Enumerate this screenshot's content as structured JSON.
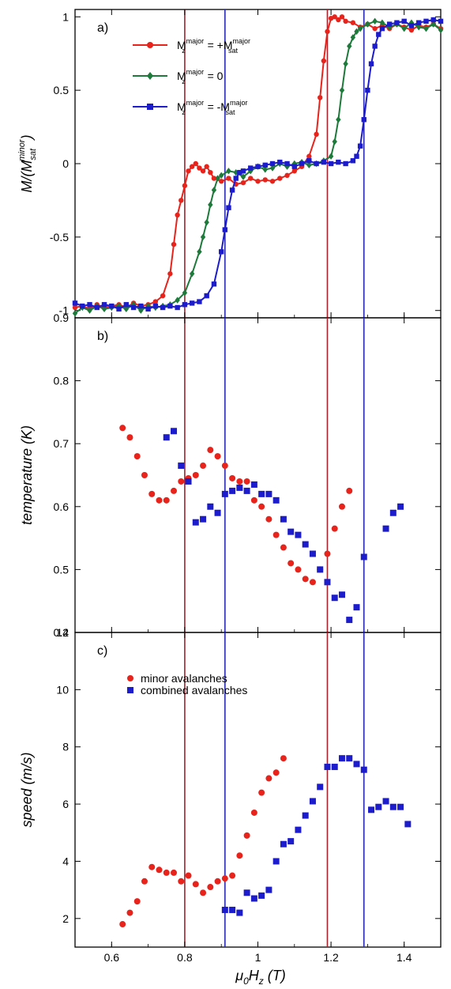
{
  "colors": {
    "red": "#e8231c",
    "green": "#1d7a3a",
    "blue": "#1c1ccc",
    "red_line": "#a8202a",
    "blue_line": "#2a2ab0"
  },
  "figure": {
    "xlabel": "μ0Hz (T)",
    "xlabel_main": "μ",
    "xlabel_sub1": "0",
    "xlabel_mid": "H",
    "xlabel_sub2": "z",
    "xlabel_unit": " (T)"
  },
  "chart_data": [
    {
      "type": "line",
      "panel_label": "a)",
      "ylabel": "M/(M_sat^minor)",
      "xlim": [
        0.5,
        1.5
      ],
      "ylim": [
        -1.05,
        1.05
      ],
      "xticks": [
        0.6,
        0.8,
        1.0,
        1.2,
        1.4
      ],
      "xtick_labels": [
        "0.6",
        "0.8",
        "1",
        "1.2",
        "1.4"
      ],
      "yticks": [
        -1,
        -0.5,
        0,
        0.5,
        1
      ],
      "ytick_labels": [
        "-1",
        "-0.5",
        "0",
        "0.5",
        "1"
      ],
      "legend": [
        {
          "label_pre": "M",
          "label_sup": "major",
          "label_sub": "z",
          "label_post": " = +M",
          "label_post_sup": "major",
          "label_post_sub": "sat",
          "color_key": "red",
          "marker": "circle"
        },
        {
          "label_pre": "M",
          "label_sup": "major",
          "label_sub": "z",
          "label_post": " = 0",
          "label_post_sup": "",
          "label_post_sub": "",
          "color_key": "green",
          "marker": "diamond"
        },
        {
          "label_pre": "M",
          "label_sup": "major",
          "label_sub": "z",
          "label_post": " = -M",
          "label_post_sup": "major",
          "label_post_sub": "sat",
          "color_key": "blue",
          "marker": "square"
        }
      ],
      "series": [
        {
          "color_key": "red",
          "marker": "circle",
          "x": [
            0.5,
            0.52,
            0.54,
            0.56,
            0.58,
            0.6,
            0.62,
            0.64,
            0.66,
            0.68,
            0.7,
            0.72,
            0.74,
            0.76,
            0.77,
            0.78,
            0.79,
            0.8,
            0.81,
            0.82,
            0.83,
            0.84,
            0.85,
            0.86,
            0.87,
            0.88,
            0.9,
            0.92,
            0.94,
            0.96,
            0.98,
            1.0,
            1.02,
            1.04,
            1.06,
            1.08,
            1.1,
            1.12,
            1.14,
            1.16,
            1.17,
            1.18,
            1.19,
            1.2,
            1.21,
            1.22,
            1.23,
            1.24,
            1.26,
            1.28,
            1.3,
            1.32,
            1.34,
            1.36,
            1.38,
            1.4,
            1.42,
            1.44,
            1.46,
            1.48,
            1.5
          ],
          "y": [
            -0.98,
            -0.97,
            -0.99,
            -0.96,
            -0.98,
            -0.97,
            -0.96,
            -0.98,
            -0.95,
            -0.97,
            -0.96,
            -0.94,
            -0.9,
            -0.75,
            -0.55,
            -0.35,
            -0.25,
            -0.15,
            -0.05,
            -0.02,
            0.0,
            -0.03,
            -0.05,
            -0.02,
            -0.06,
            -0.1,
            -0.12,
            -0.1,
            -0.14,
            -0.13,
            -0.1,
            -0.12,
            -0.11,
            -0.12,
            -0.1,
            -0.08,
            -0.05,
            -0.02,
            0.05,
            0.2,
            0.45,
            0.7,
            0.9,
            0.99,
            1.0,
            0.98,
            1.0,
            0.97,
            0.96,
            0.93,
            0.95,
            0.92,
            0.94,
            0.92,
            0.95,
            0.93,
            0.91,
            0.94,
            0.93,
            0.95,
            0.92
          ]
        },
        {
          "color_key": "green",
          "marker": "diamond",
          "x": [
            0.5,
            0.52,
            0.54,
            0.56,
            0.58,
            0.6,
            0.62,
            0.64,
            0.66,
            0.68,
            0.7,
            0.72,
            0.74,
            0.76,
            0.78,
            0.8,
            0.82,
            0.84,
            0.85,
            0.86,
            0.87,
            0.88,
            0.89,
            0.9,
            0.92,
            0.94,
            0.96,
            0.98,
            1.0,
            1.02,
            1.04,
            1.06,
            1.08,
            1.1,
            1.12,
            1.14,
            1.16,
            1.18,
            1.2,
            1.21,
            1.22,
            1.23,
            1.24,
            1.25,
            1.26,
            1.27,
            1.28,
            1.3,
            1.32,
            1.34,
            1.36,
            1.38,
            1.4,
            1.42,
            1.44,
            1.46,
            1.48,
            1.5
          ],
          "y": [
            -1.02,
            -0.98,
            -1.0,
            -0.97,
            -0.99,
            -0.98,
            -0.97,
            -0.99,
            -0.96,
            -1.0,
            -0.97,
            -0.98,
            -0.97,
            -0.96,
            -0.93,
            -0.88,
            -0.75,
            -0.6,
            -0.5,
            -0.4,
            -0.28,
            -0.18,
            -0.1,
            -0.08,
            -0.05,
            -0.06,
            -0.09,
            -0.05,
            -0.02,
            -0.04,
            -0.03,
            0.0,
            -0.02,
            0.0,
            0.01,
            -0.01,
            0.0,
            0.02,
            0.05,
            0.15,
            0.3,
            0.5,
            0.68,
            0.8,
            0.86,
            0.9,
            0.92,
            0.95,
            0.97,
            0.96,
            0.93,
            0.95,
            0.92,
            0.96,
            0.93,
            0.92,
            0.95,
            0.91
          ]
        },
        {
          "color_key": "blue",
          "marker": "square",
          "x": [
            0.5,
            0.52,
            0.54,
            0.56,
            0.58,
            0.6,
            0.62,
            0.64,
            0.66,
            0.68,
            0.7,
            0.72,
            0.74,
            0.76,
            0.78,
            0.8,
            0.82,
            0.84,
            0.86,
            0.88,
            0.9,
            0.91,
            0.92,
            0.93,
            0.94,
            0.95,
            0.96,
            0.98,
            1.0,
            1.02,
            1.04,
            1.06,
            1.08,
            1.1,
            1.12,
            1.14,
            1.16,
            1.18,
            1.2,
            1.22,
            1.24,
            1.26,
            1.27,
            1.28,
            1.29,
            1.3,
            1.31,
            1.32,
            1.33,
            1.34,
            1.36,
            1.38,
            1.4,
            1.42,
            1.44,
            1.46,
            1.48,
            1.5
          ],
          "y": [
            -0.95,
            -0.97,
            -0.96,
            -0.98,
            -0.96,
            -0.97,
            -0.99,
            -0.96,
            -0.98,
            -0.97,
            -0.99,
            -0.97,
            -0.98,
            -0.97,
            -0.98,
            -0.96,
            -0.95,
            -0.94,
            -0.9,
            -0.82,
            -0.6,
            -0.45,
            -0.3,
            -0.18,
            -0.1,
            -0.06,
            -0.05,
            -0.03,
            -0.02,
            -0.01,
            0.0,
            0.01,
            0.0,
            -0.02,
            0.0,
            0.02,
            0.0,
            0.01,
            0.0,
            0.01,
            0.0,
            0.02,
            0.05,
            0.12,
            0.3,
            0.5,
            0.68,
            0.8,
            0.88,
            0.92,
            0.95,
            0.96,
            0.97,
            0.94,
            0.96,
            0.97,
            0.98,
            0.97
          ]
        }
      ],
      "vlines": [
        {
          "x": 0.8,
          "color_key": "red_line"
        },
        {
          "x": 0.91,
          "color_key": "blue_line"
        },
        {
          "x": 1.19,
          "color_key": "red_line"
        },
        {
          "x": 1.29,
          "color_key": "blue_line"
        }
      ]
    },
    {
      "type": "scatter",
      "panel_label": "b)",
      "ylabel": "temperature (K)",
      "xlim": [
        0.5,
        1.5
      ],
      "ylim": [
        0.4,
        0.9
      ],
      "xticks": [
        0.6,
        0.8,
        1.0,
        1.2,
        1.4
      ],
      "xtick_labels": [
        "0.6",
        "0.8",
        "1",
        "1.2",
        "1.4"
      ],
      "yticks": [
        0.4,
        0.5,
        0.6,
        0.7,
        0.8,
        0.9
      ],
      "ytick_labels": [
        "0.4",
        "0.5",
        "0.6",
        "0.7",
        "0.8",
        "0.9"
      ],
      "series": [
        {
          "color_key": "red",
          "marker": "circle",
          "x": [
            0.63,
            0.65,
            0.67,
            0.69,
            0.71,
            0.73,
            0.75,
            0.77,
            0.79,
            0.81,
            0.83,
            0.85,
            0.87,
            0.89,
            0.91,
            0.93,
            0.95,
            0.97,
            0.99,
            1.01,
            1.03,
            1.05,
            1.07,
            1.09,
            1.11,
            1.13,
            1.15,
            1.17,
            1.19,
            1.21,
            1.23,
            1.25
          ],
          "y": [
            0.725,
            0.71,
            0.68,
            0.65,
            0.62,
            0.61,
            0.61,
            0.625,
            0.64,
            0.645,
            0.65,
            0.665,
            0.69,
            0.68,
            0.665,
            0.645,
            0.64,
            0.64,
            0.61,
            0.6,
            0.58,
            0.555,
            0.535,
            0.51,
            0.5,
            0.485,
            0.48,
            0.5,
            0.525,
            0.565,
            0.6,
            0.625
          ]
        },
        {
          "color_key": "blue",
          "marker": "square",
          "x": [
            0.75,
            0.77,
            0.79,
            0.81,
            0.83,
            0.85,
            0.87,
            0.89,
            0.91,
            0.93,
            0.95,
            0.97,
            0.99,
            1.01,
            1.03,
            1.05,
            1.07,
            1.09,
            1.11,
            1.13,
            1.15,
            1.17,
            1.19,
            1.21,
            1.23,
            1.25,
            1.27,
            1.29,
            1.35,
            1.37,
            1.39
          ],
          "y": [
            0.71,
            0.72,
            0.665,
            0.64,
            0.575,
            0.58,
            0.6,
            0.59,
            0.62,
            0.625,
            0.63,
            0.625,
            0.635,
            0.62,
            0.62,
            0.61,
            0.58,
            0.56,
            0.555,
            0.54,
            0.525,
            0.5,
            0.48,
            0.455,
            0.46,
            0.42,
            0.44,
            0.52,
            0.565,
            0.59,
            0.6
          ]
        }
      ],
      "vlines": [
        {
          "x": 0.8,
          "color_key": "red_line"
        },
        {
          "x": 0.91,
          "color_key": "blue_line"
        },
        {
          "x": 1.19,
          "color_key": "red_line"
        },
        {
          "x": 1.29,
          "color_key": "blue_line"
        }
      ]
    },
    {
      "type": "scatter",
      "panel_label": "c)",
      "ylabel": "speed (m/s)",
      "xlim": [
        0.5,
        1.5
      ],
      "ylim": [
        1,
        12
      ],
      "xticks": [
        0.6,
        0.8,
        1.0,
        1.2,
        1.4
      ],
      "xtick_labels": [
        "0.6",
        "0.8",
        "1",
        "1.2",
        "1.4"
      ],
      "yticks": [
        2,
        4,
        6,
        8,
        10,
        12
      ],
      "ytick_labels": [
        "2",
        "4",
        "6",
        "8",
        "10",
        "12"
      ],
      "legend": [
        {
          "label": "minor avalanches",
          "color_key": "red",
          "marker": "circle"
        },
        {
          "label": "combined avalanches",
          "color_key": "blue",
          "marker": "square"
        }
      ],
      "series": [
        {
          "name": "minor avalanches",
          "color_key": "red",
          "marker": "circle",
          "x": [
            0.63,
            0.65,
            0.67,
            0.69,
            0.71,
            0.73,
            0.75,
            0.77,
            0.79,
            0.81,
            0.83,
            0.85,
            0.87,
            0.89,
            0.91,
            0.93,
            0.95,
            0.97,
            0.99,
            1.01,
            1.03,
            1.05,
            1.07
          ],
          "y": [
            1.8,
            2.2,
            2.6,
            3.3,
            3.8,
            3.7,
            3.6,
            3.6,
            3.3,
            3.5,
            3.2,
            2.9,
            3.1,
            3.3,
            3.4,
            3.5,
            4.2,
            4.9,
            5.7,
            6.4,
            6.9,
            7.1,
            7.6
          ]
        },
        {
          "name": "combined avalanches",
          "color_key": "blue",
          "marker": "square",
          "x": [
            0.91,
            0.93,
            0.95,
            0.97,
            0.99,
            1.01,
            1.03,
            1.05,
            1.07,
            1.09,
            1.11,
            1.13,
            1.15,
            1.17,
            1.19,
            1.21,
            1.23,
            1.25,
            1.27,
            1.29,
            1.31,
            1.33,
            1.35,
            1.37,
            1.39,
            1.41
          ],
          "y": [
            2.3,
            2.3,
            2.2,
            2.9,
            2.7,
            2.8,
            3.0,
            4.0,
            4.6,
            4.7,
            5.1,
            5.6,
            6.1,
            6.6,
            7.3,
            7.3,
            7.6,
            7.6,
            7.4,
            7.2,
            5.8,
            5.9,
            6.1,
            5.9,
            5.9,
            5.3
          ]
        }
      ],
      "vlines": [
        {
          "x": 0.8,
          "color_key": "red_line"
        },
        {
          "x": 0.91,
          "color_key": "blue_line"
        },
        {
          "x": 1.19,
          "color_key": "red_line"
        },
        {
          "x": 1.29,
          "color_key": "blue_line"
        }
      ]
    }
  ]
}
